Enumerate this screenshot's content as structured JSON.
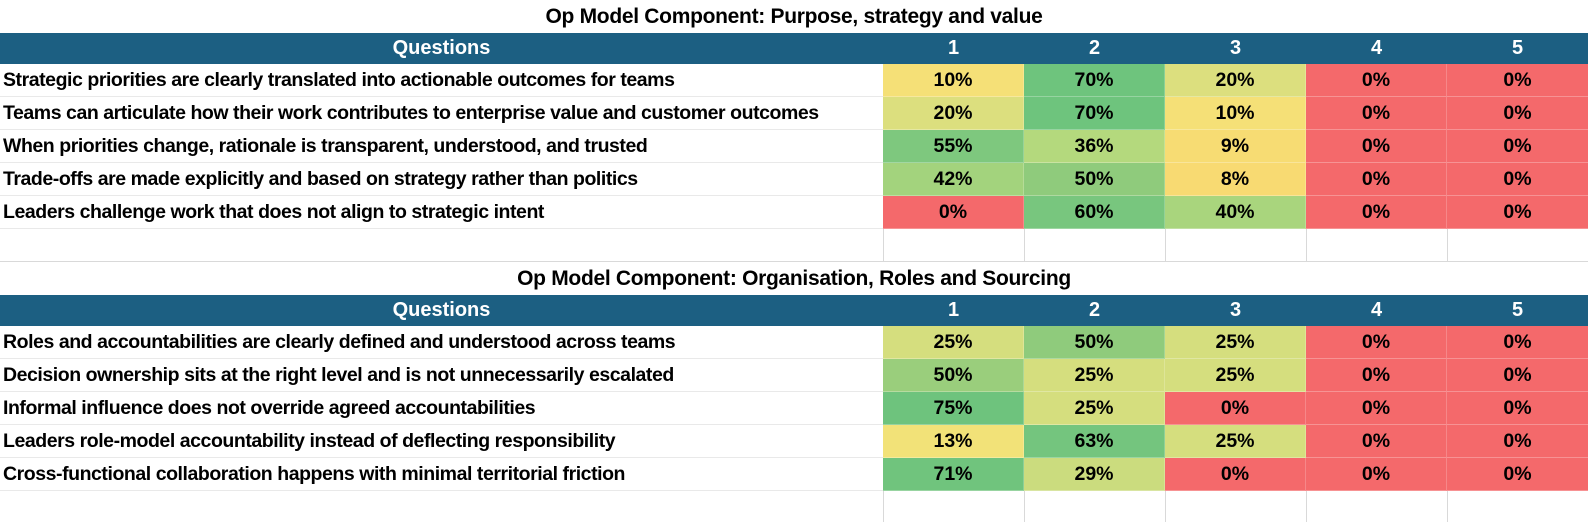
{
  "theme": {
    "background": "#FFFFFF",
    "header_bg": "#1C5F82",
    "header_text": "#FFFFFF",
    "grid_line": "#D9D9D9",
    "row_line": "#E9E9E9",
    "text_color": "#000000",
    "red": "#F4696B"
  },
  "tables": [
    {
      "title": "Op Model Component: Purpose, strategy and value",
      "columns": [
        "Questions",
        "1",
        "2",
        "3",
        "4",
        "5"
      ],
      "rows": [
        {
          "question": "Strategic priorities are clearly translated into actionable outcomes for teams",
          "values": [
            {
              "text": "10%",
              "color": "#F5E077"
            },
            {
              "text": "70%",
              "color": "#6EC47D"
            },
            {
              "text": "20%",
              "color": "#DCDF7E"
            },
            {
              "text": "0%",
              "color": "#F4696B"
            },
            {
              "text": "0%",
              "color": "#F4696B"
            }
          ]
        },
        {
          "question": "Teams can articulate how their work contributes to enterprise value and customer outcomes",
          "values": [
            {
              "text": "20%",
              "color": "#DCDF7E"
            },
            {
              "text": "70%",
              "color": "#6EC47D"
            },
            {
              "text": "10%",
              "color": "#F5E077"
            },
            {
              "text": "0%",
              "color": "#F4696B"
            },
            {
              "text": "0%",
              "color": "#F4696B"
            }
          ]
        },
        {
          "question": "When priorities change, rationale is transparent, understood, and trusted",
          "values": [
            {
              "text": "55%",
              "color": "#7EC87E"
            },
            {
              "text": "36%",
              "color": "#B4D97D"
            },
            {
              "text": "9%",
              "color": "#F7DC73"
            },
            {
              "text": "0%",
              "color": "#F4696B"
            },
            {
              "text": "0%",
              "color": "#F4696B"
            }
          ]
        },
        {
          "question": "Trade-offs are made explicitly and based on strategy rather than politics",
          "values": [
            {
              "text": "42%",
              "color": "#A3D37D"
            },
            {
              "text": "50%",
              "color": "#8FCB7C"
            },
            {
              "text": "8%",
              "color": "#F8DA72"
            },
            {
              "text": "0%",
              "color": "#F4696B"
            },
            {
              "text": "0%",
              "color": "#F4696B"
            }
          ]
        },
        {
          "question": "Leaders challenge work that does not align to strategic intent",
          "values": [
            {
              "text": "0%",
              "color": "#F4696B"
            },
            {
              "text": "60%",
              "color": "#78C67E"
            },
            {
              "text": "40%",
              "color": "#A9D57D"
            },
            {
              "text": "0%",
              "color": "#F4696B"
            },
            {
              "text": "0%",
              "color": "#F4696B"
            }
          ]
        }
      ]
    },
    {
      "title": "Op Model Component: Organisation, Roles and Sourcing",
      "columns": [
        "Questions",
        "1",
        "2",
        "3",
        "4",
        "5"
      ],
      "rows": [
        {
          "question": "Roles and accountabilities are clearly defined and understood across teams",
          "values": [
            {
              "text": "25%",
              "color": "#D5DE7E"
            },
            {
              "text": "50%",
              "color": "#8FCB7C"
            },
            {
              "text": "25%",
              "color": "#D5DE7E"
            },
            {
              "text": "0%",
              "color": "#F4696B"
            },
            {
              "text": "0%",
              "color": "#F4696B"
            }
          ]
        },
        {
          "question": "Decision ownership sits at the right level and is not unnecessarily escalated",
          "values": [
            {
              "text": "50%",
              "color": "#9ACE7C"
            },
            {
              "text": "25%",
              "color": "#D5DE7E"
            },
            {
              "text": "25%",
              "color": "#D5DE7E"
            },
            {
              "text": "0%",
              "color": "#F4696B"
            },
            {
              "text": "0%",
              "color": "#F4696B"
            }
          ]
        },
        {
          "question": "Informal influence does not override agreed accountabilities",
          "values": [
            {
              "text": "75%",
              "color": "#6EC37D"
            },
            {
              "text": "25%",
              "color": "#D5DE7E"
            },
            {
              "text": "0%",
              "color": "#F4696B"
            },
            {
              "text": "0%",
              "color": "#F4696B"
            },
            {
              "text": "0%",
              "color": "#F4696B"
            }
          ]
        },
        {
          "question": "Leaders role-model accountability instead of deflecting responsibility",
          "values": [
            {
              "text": "13%",
              "color": "#F2E278"
            },
            {
              "text": "63%",
              "color": "#74C57E"
            },
            {
              "text": "25%",
              "color": "#D5DE7E"
            },
            {
              "text": "0%",
              "color": "#F4696B"
            },
            {
              "text": "0%",
              "color": "#F4696B"
            }
          ]
        },
        {
          "question": "Cross-functional collaboration happens with minimal territorial friction",
          "values": [
            {
              "text": "71%",
              "color": "#70C47D"
            },
            {
              "text": "29%",
              "color": "#CBDC7E"
            },
            {
              "text": "0%",
              "color": "#F4696B"
            },
            {
              "text": "0%",
              "color": "#F4696B"
            },
            {
              "text": "0%",
              "color": "#F4696B"
            }
          ]
        }
      ]
    }
  ]
}
